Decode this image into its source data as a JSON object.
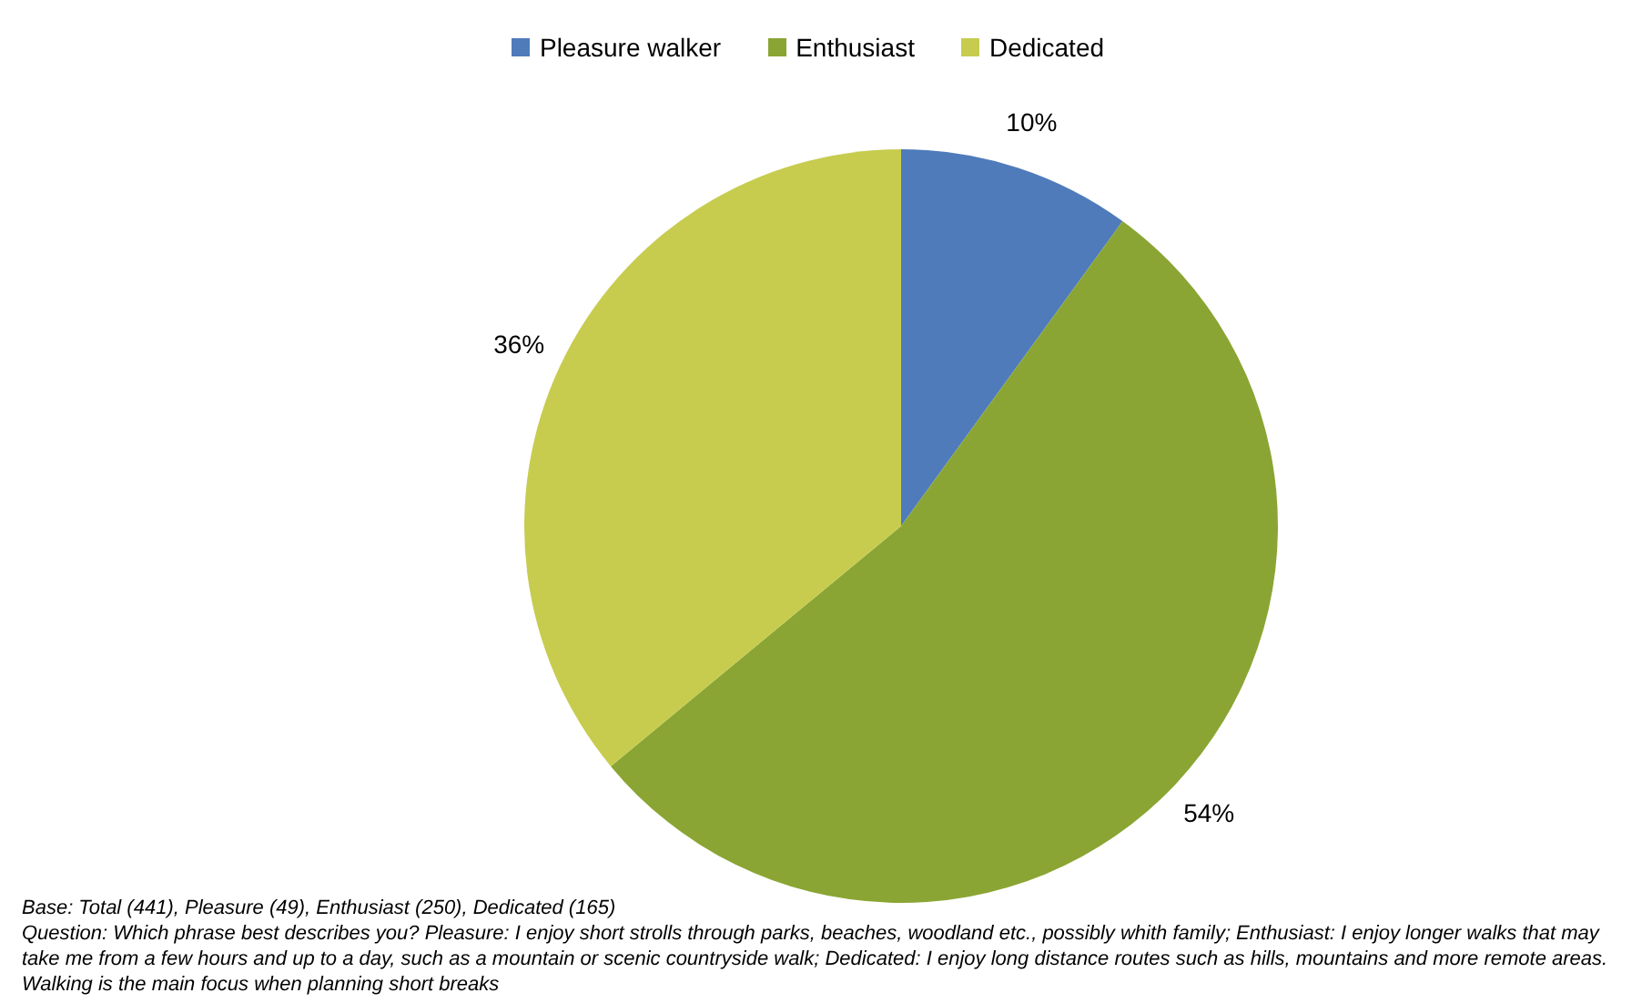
{
  "chart_data": {
    "type": "pie",
    "categories": [
      "Pleasure walker",
      "Enthusiast",
      "Dedicated"
    ],
    "values": [
      10,
      54,
      36
    ],
    "colors": [
      "#4f7bbb",
      "#8aa533",
      "#c7cc4f"
    ],
    "value_labels": [
      "10%",
      "54%",
      "36%"
    ],
    "legend": "top",
    "annotations": [
      "Base: Total (441), Pleasure  (49), Enthusiast (250), Dedicated (165)",
      "Question: Which phrase best describes you? Pleasure: I enjoy short strolls through parks, beaches, woodland etc., possibly whith family; Enthusiast: I enjoy longer walks that may take me from a few hours and up to a day, such as a mountain or scenic countryside walk; Dedicated: I enjoy long distance routes such as hills, mountains and more remote areas. Walking is the main focus when planning short breaks"
    ]
  }
}
